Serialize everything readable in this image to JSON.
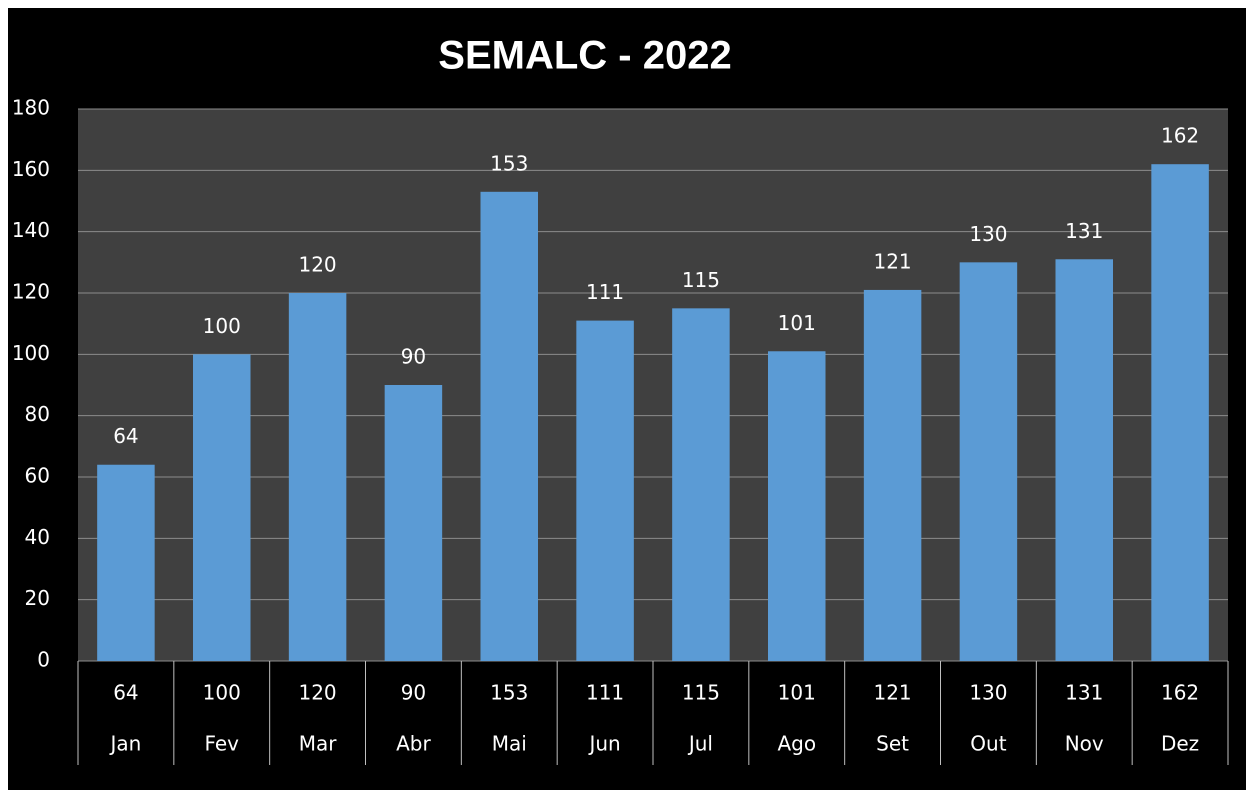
{
  "chart_data": {
    "type": "bar",
    "title": "SEMALC - 2022",
    "categories": [
      "Jan",
      "Fev",
      "Mar",
      "Abr",
      "Mai",
      "Jun",
      "Jul",
      "Ago",
      "Set",
      "Out",
      "Nov",
      "Dez"
    ],
    "values": [
      64,
      100,
      120,
      90,
      153,
      111,
      115,
      101,
      121,
      130,
      131,
      162
    ],
    "color": "#5b9bd5",
    "ylim": [
      0,
      180
    ],
    "yticks": [
      0,
      20,
      40,
      60,
      80,
      100,
      120,
      140,
      160,
      180
    ],
    "grid": true
  }
}
